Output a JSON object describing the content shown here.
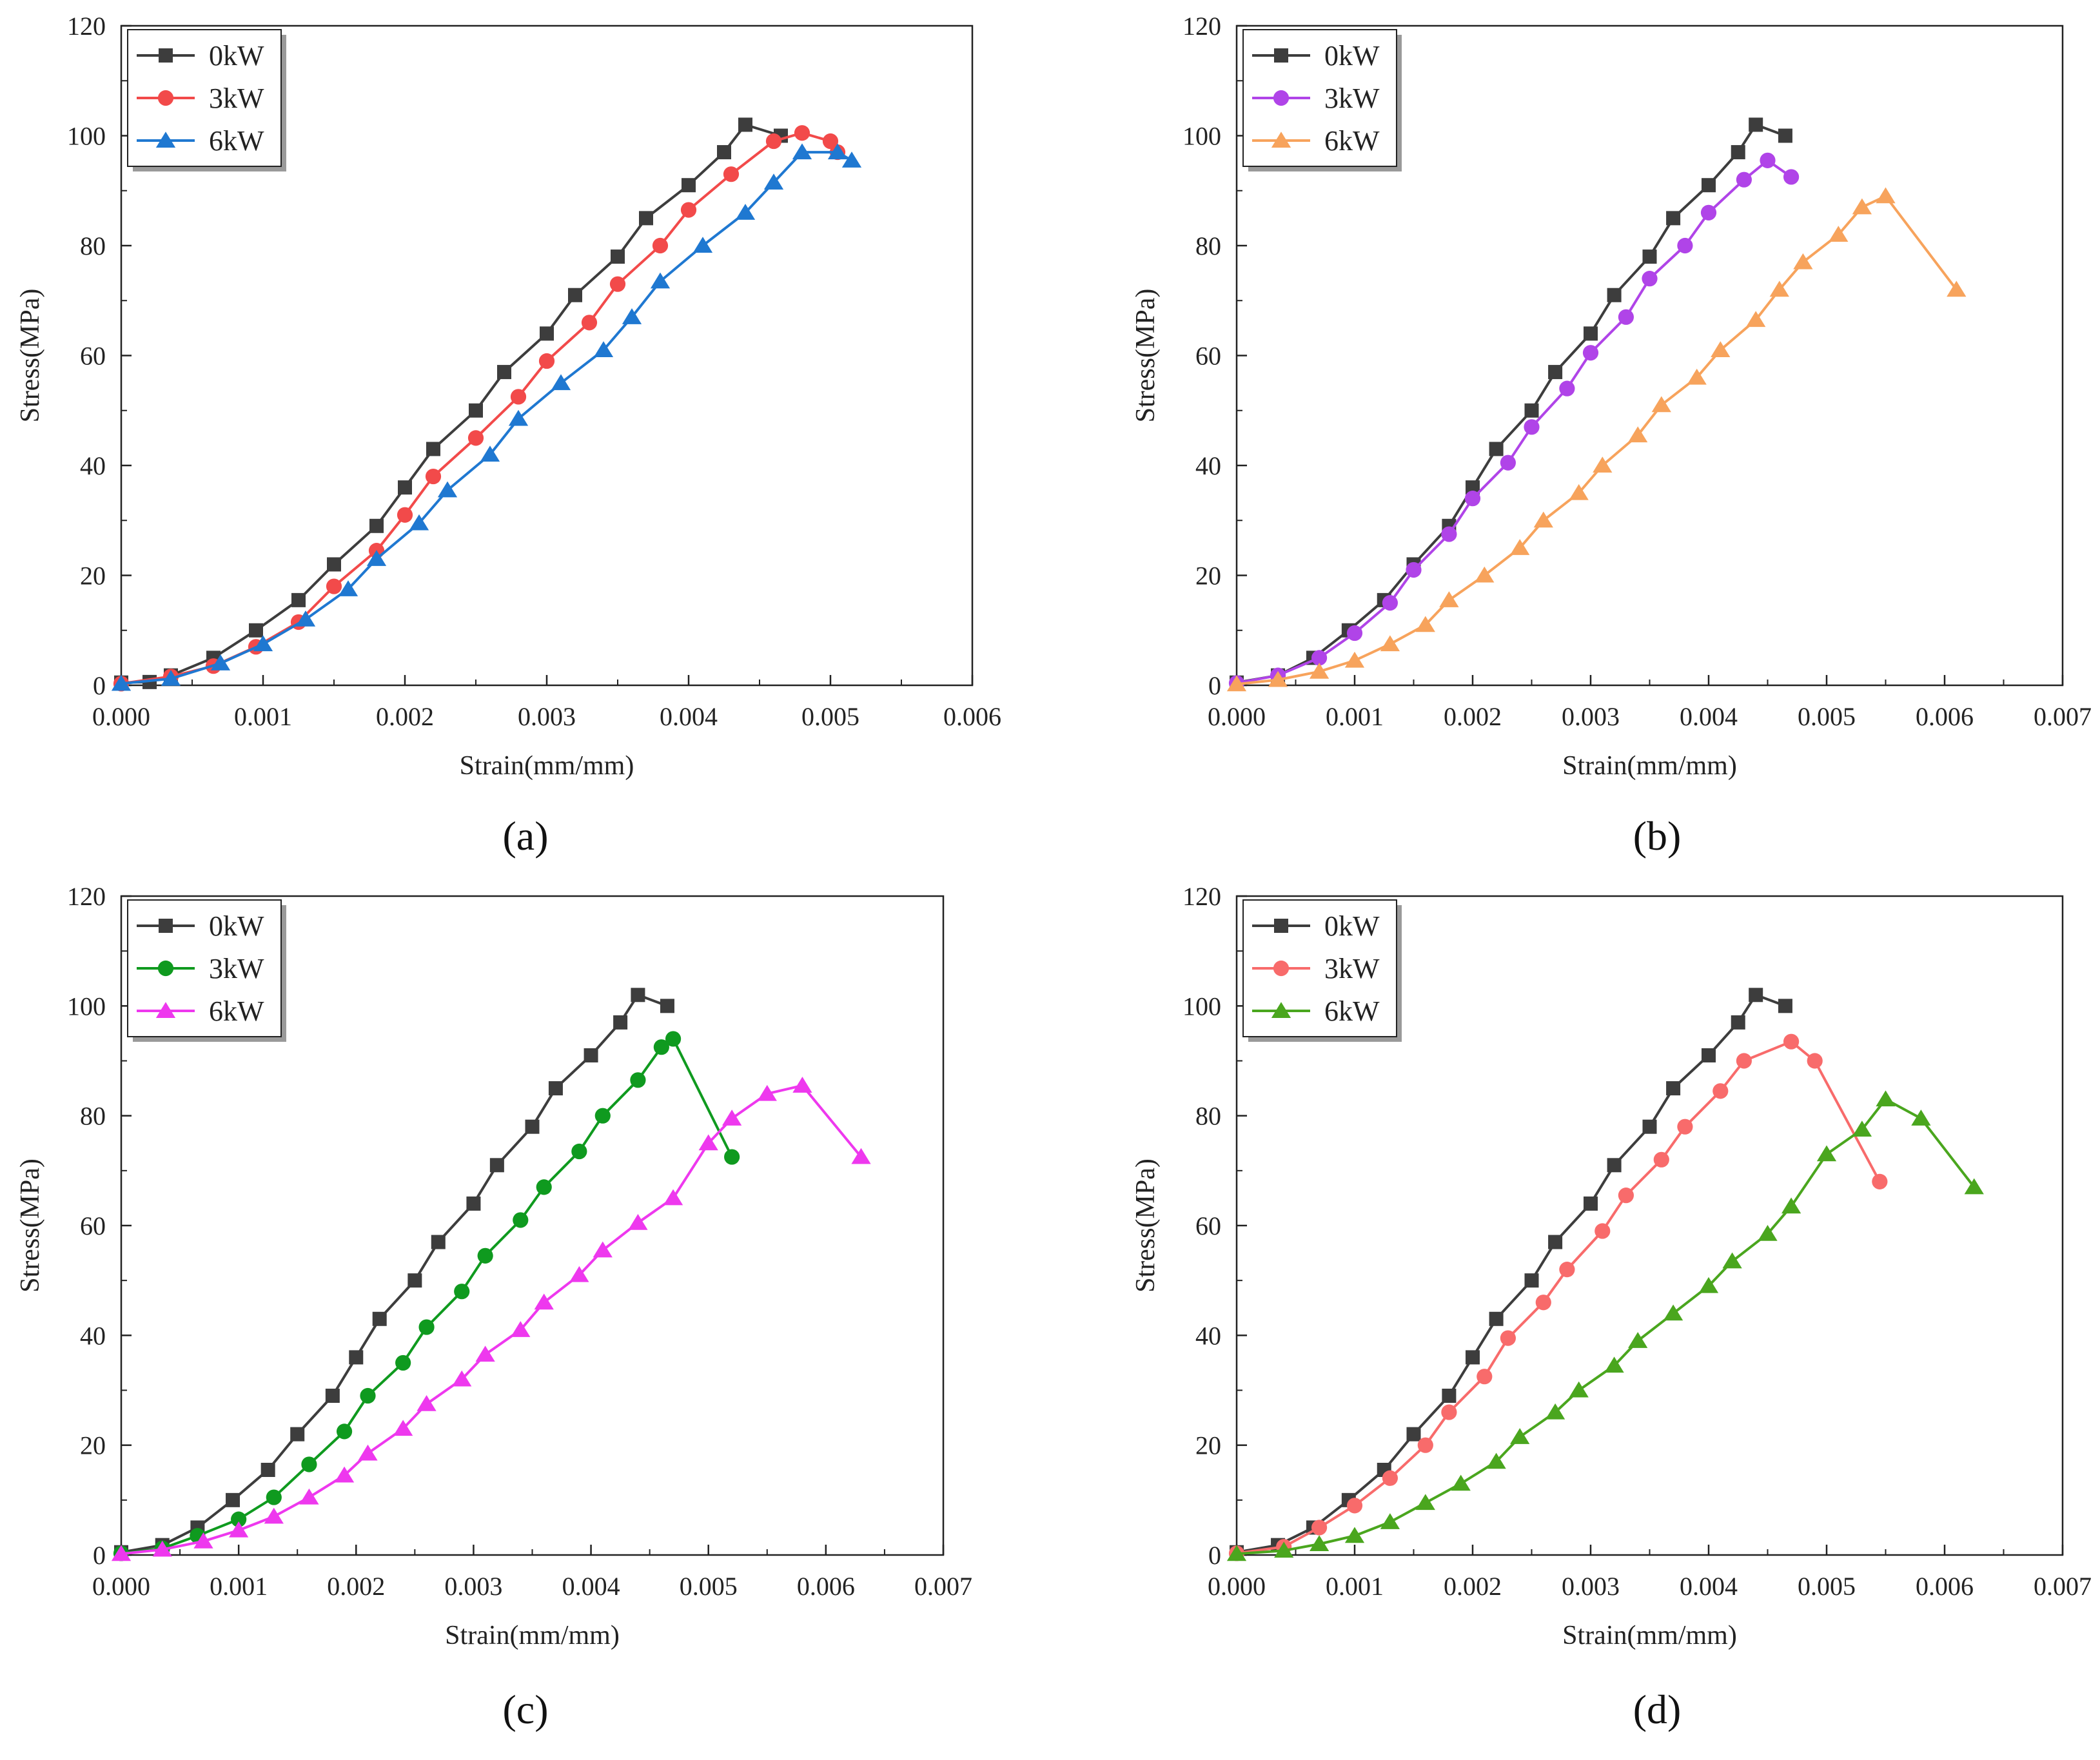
{
  "figure": {
    "panels": [
      "(a)",
      "(b)",
      "(c)",
      "(d)"
    ]
  },
  "chart_data": [
    {
      "id": "a",
      "caption": "(a)",
      "type": "line",
      "xlabel": "Strain(mm/mm)",
      "ylabel": "Stress(MPa)",
      "xlim": [
        0,
        0.006
      ],
      "ylim": [
        0,
        120
      ],
      "xticks": [
        "0.000",
        "0.001",
        "0.002",
        "0.003",
        "0.004",
        "0.005",
        "0.006"
      ],
      "yticks": [
        "0",
        "20",
        "40",
        "60",
        "80",
        "100",
        "120"
      ],
      "legend_position": "top-left",
      "series": [
        {
          "name": "0kW",
          "color": "#3d3d3d",
          "marker": "square",
          "x": [
            0,
            0.0002,
            0.00035,
            0.00065,
            0.00095,
            0.00125,
            0.0015,
            0.0018,
            0.002,
            0.0022,
            0.0025,
            0.0027,
            0.003,
            0.0032,
            0.0035,
            0.0037,
            0.004,
            0.00425,
            0.0044,
            0.00465
          ],
          "y": [
            0.5,
            0.6,
            1.8,
            5,
            10,
            15.5,
            22,
            29,
            36,
            43,
            50,
            57,
            64,
            71,
            78,
            85,
            91,
            97,
            102,
            100
          ]
        },
        {
          "name": "3kW",
          "color": "#f24a4a",
          "marker": "circle",
          "x": [
            0,
            0.00035,
            0.00065,
            0.00095,
            0.00125,
            0.0015,
            0.0018,
            0.002,
            0.0022,
            0.0025,
            0.0028,
            0.003,
            0.0033,
            0.0035,
            0.0038,
            0.004,
            0.0043,
            0.0046,
            0.0048,
            0.005,
            0.00505
          ],
          "y": [
            0.3,
            1.6,
            3.5,
            7,
            11.5,
            18,
            24.5,
            31,
            38,
            45,
            52.5,
            59,
            66,
            73,
            80,
            86.5,
            93,
            99,
            100.5,
            99,
            97
          ]
        },
        {
          "name": "6kW",
          "color": "#1f78d1",
          "marker": "triangle",
          "x": [
            0,
            0.00035,
            0.0007,
            0.001,
            0.0013,
            0.0016,
            0.0018,
            0.0021,
            0.0023,
            0.0026,
            0.0028,
            0.0031,
            0.0034,
            0.0036,
            0.0038,
            0.0041,
            0.0044,
            0.0046,
            0.0048,
            0.00505,
            0.00515
          ],
          "y": [
            0.3,
            1.2,
            4,
            7.5,
            12,
            17.5,
            23,
            29.5,
            35.5,
            42,
            48.5,
            55,
            61,
            67,
            73.5,
            80,
            86,
            91.5,
            97,
            97,
            95.5
          ]
        }
      ]
    },
    {
      "id": "b",
      "caption": "(b)",
      "type": "line",
      "xlabel": "Strain(mm/mm)",
      "ylabel": "Stress(MPa)",
      "xlim": [
        0,
        0.007
      ],
      "ylim": [
        0,
        120
      ],
      "xticks": [
        "0.000",
        "0.001",
        "0.002",
        "0.003",
        "0.004",
        "0.005",
        "0.006",
        "0.007"
      ],
      "yticks": [
        "0",
        "20",
        "40",
        "60",
        "80",
        "100",
        "120"
      ],
      "legend_position": "top-left",
      "series": [
        {
          "name": "0kW",
          "color": "#3d3d3d",
          "marker": "square",
          "x": [
            0,
            0.00035,
            0.00065,
            0.00095,
            0.00125,
            0.0015,
            0.0018,
            0.002,
            0.0022,
            0.0025,
            0.0027,
            0.003,
            0.0032,
            0.0035,
            0.0037,
            0.004,
            0.00425,
            0.0044,
            0.00465
          ],
          "y": [
            0.5,
            1.8,
            5,
            10,
            15.5,
            22,
            29,
            36,
            43,
            50,
            57,
            64,
            71,
            78,
            85,
            91,
            97,
            102,
            100
          ]
        },
        {
          "name": "3kW",
          "color": "#b044e8",
          "marker": "circle",
          "x": [
            0,
            0.00035,
            0.0007,
            0.001,
            0.0013,
            0.0015,
            0.0018,
            0.002,
            0.0023,
            0.0025,
            0.0028,
            0.003,
            0.0033,
            0.0035,
            0.0038,
            0.004,
            0.0043,
            0.0045,
            0.0047
          ],
          "y": [
            0.4,
            1.8,
            5,
            9.5,
            15,
            21,
            27.5,
            34,
            40.5,
            47,
            54,
            60.5,
            67,
            74,
            80,
            86,
            92,
            95.5,
            92.5
          ]
        },
        {
          "name": "6kW",
          "color": "#f7a35c",
          "marker": "triangle",
          "x": [
            0,
            0.00035,
            0.0007,
            0.001,
            0.0013,
            0.0016,
            0.0018,
            0.0021,
            0.0024,
            0.0026,
            0.0029,
            0.0031,
            0.0034,
            0.0036,
            0.0039,
            0.0041,
            0.0044,
            0.0046,
            0.0048,
            0.0051,
            0.0053,
            0.0055,
            0.0061
          ],
          "y": [
            0.2,
            1,
            2.5,
            4.5,
            7.5,
            11,
            15.5,
            20,
            25,
            30,
            35,
            40,
            45.5,
            51,
            56,
            61,
            66.5,
            72,
            77,
            82,
            87,
            89,
            72
          ]
        }
      ]
    },
    {
      "id": "c",
      "caption": "(c)",
      "type": "line",
      "xlabel": "Strain(mm/mm)",
      "ylabel": "Stress(MPa)",
      "xlim": [
        0,
        0.007
      ],
      "ylim": [
        0,
        120
      ],
      "xticks": [
        "0.000",
        "0.001",
        "0.002",
        "0.003",
        "0.004",
        "0.005",
        "0.006",
        "0.007"
      ],
      "yticks": [
        "0",
        "20",
        "40",
        "60",
        "80",
        "100",
        "120"
      ],
      "legend_position": "top-left",
      "series": [
        {
          "name": "0kW",
          "color": "#3d3d3d",
          "marker": "square",
          "x": [
            0,
            0.00035,
            0.00065,
            0.00095,
            0.00125,
            0.0015,
            0.0018,
            0.002,
            0.0022,
            0.0025,
            0.0027,
            0.003,
            0.0032,
            0.0035,
            0.0037,
            0.004,
            0.00425,
            0.0044,
            0.00465
          ],
          "y": [
            0.5,
            1.8,
            5,
            10,
            15.5,
            22,
            29,
            36,
            43,
            50,
            57,
            64,
            71,
            78,
            85,
            91,
            97,
            102,
            100
          ]
        },
        {
          "name": "3kW",
          "color": "#0f9a1f",
          "marker": "circle",
          "x": [
            0,
            0.00035,
            0.00065,
            0.001,
            0.0013,
            0.0016,
            0.0019,
            0.0021,
            0.0024,
            0.0026,
            0.0029,
            0.0031,
            0.0034,
            0.0036,
            0.0039,
            0.0041,
            0.0044,
            0.0046,
            0.0047,
            0.0052
          ],
          "y": [
            0.3,
            1.2,
            3.5,
            6.5,
            10.5,
            16.5,
            22.5,
            29,
            35,
            41.5,
            48,
            54.5,
            61,
            67,
            73.5,
            80,
            86.5,
            92.5,
            94,
            72.5
          ]
        },
        {
          "name": "6kW",
          "color": "#ee38ee",
          "marker": "triangle",
          "x": [
            0,
            0.00035,
            0.0007,
            0.001,
            0.0013,
            0.0016,
            0.0019,
            0.0021,
            0.0024,
            0.0026,
            0.0029,
            0.0031,
            0.0034,
            0.0036,
            0.0039,
            0.0041,
            0.0044,
            0.0047,
            0.005,
            0.0052,
            0.0055,
            0.0058,
            0.0063
          ],
          "y": [
            0.2,
            1,
            2.5,
            4.5,
            7,
            10.5,
            14.5,
            18.5,
            23,
            27.5,
            32,
            36.5,
            41,
            46,
            51,
            55.5,
            60.5,
            65,
            75,
            79.5,
            84,
            85.5,
            72.5
          ]
        }
      ]
    },
    {
      "id": "d",
      "caption": "(d)",
      "type": "line",
      "xlabel": "Strain(mm/mm)",
      "ylabel": "Stress(MPa)",
      "xlim": [
        0,
        0.007
      ],
      "ylim": [
        0,
        120
      ],
      "xticks": [
        "0.000",
        "0.001",
        "0.002",
        "0.003",
        "0.004",
        "0.005",
        "0.006",
        "0.007"
      ],
      "yticks": [
        "0",
        "20",
        "40",
        "60",
        "80",
        "100",
        "120"
      ],
      "legend_position": "top-left",
      "series": [
        {
          "name": "0kW",
          "color": "#3d3d3d",
          "marker": "square",
          "x": [
            0,
            0.00035,
            0.00065,
            0.00095,
            0.00125,
            0.0015,
            0.0018,
            0.002,
            0.0022,
            0.0025,
            0.0027,
            0.003,
            0.0032,
            0.0035,
            0.0037,
            0.004,
            0.00425,
            0.0044,
            0.00465
          ],
          "y": [
            0.5,
            1.8,
            5,
            10,
            15.5,
            22,
            29,
            36,
            43,
            50,
            57,
            64,
            71,
            78,
            85,
            91,
            97,
            102,
            100
          ]
        },
        {
          "name": "3kW",
          "color": "#f86b6b",
          "marker": "circle",
          "x": [
            0,
            0.0004,
            0.0007,
            0.001,
            0.0013,
            0.0016,
            0.0018,
            0.0021,
            0.0023,
            0.0026,
            0.0028,
            0.0031,
            0.0033,
            0.0036,
            0.0038,
            0.0041,
            0.0043,
            0.0047,
            0.0049,
            0.00545
          ],
          "y": [
            0.3,
            1.5,
            5,
            9,
            14,
            20,
            26,
            32.5,
            39.5,
            46,
            52,
            59,
            65.5,
            72,
            78,
            84.5,
            90,
            93.5,
            90,
            68
          ]
        },
        {
          "name": "6kW",
          "color": "#4aa61e",
          "marker": "triangle",
          "x": [
            0,
            0.0004,
            0.0007,
            0.001,
            0.0013,
            0.0016,
            0.0019,
            0.0022,
            0.0024,
            0.0027,
            0.0029,
            0.0032,
            0.0034,
            0.0037,
            0.004,
            0.0042,
            0.0045,
            0.0047,
            0.005,
            0.0053,
            0.0055,
            0.0058,
            0.00625
          ],
          "y": [
            0.2,
            0.8,
            2,
            3.5,
            6,
            9.5,
            13,
            17,
            21.5,
            26,
            30,
            34.5,
            39,
            44,
            49,
            53.5,
            58.5,
            63.5,
            73,
            77.5,
            83,
            79.5,
            67
          ]
        }
      ]
    }
  ]
}
